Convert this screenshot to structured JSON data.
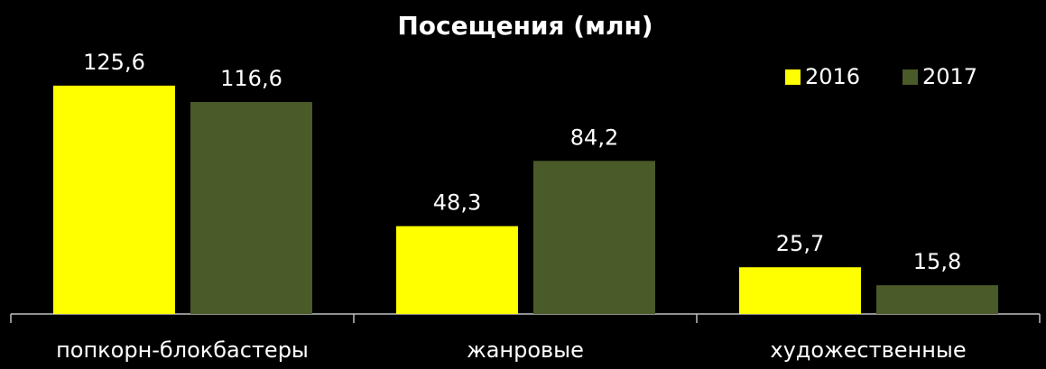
{
  "chart_data": {
    "type": "bar",
    "title": "Посещения (млн)",
    "categories": [
      "попкорн-блокбастеры",
      "жанровые",
      "художественные"
    ],
    "series": [
      {
        "name": "2016",
        "color": "#ffff00",
        "values": [
          125.6,
          48.3,
          25.7
        ],
        "value_labels": [
          "125,6",
          "48,3",
          "25,7"
        ]
      },
      {
        "name": "2017",
        "color": "#4a5a28",
        "values": [
          116.6,
          84.2,
          15.8
        ],
        "value_labels": [
          "116,6",
          "84,2",
          "15,8"
        ]
      }
    ],
    "ylim": [
      0,
      140
    ],
    "legend": "top-right"
  }
}
